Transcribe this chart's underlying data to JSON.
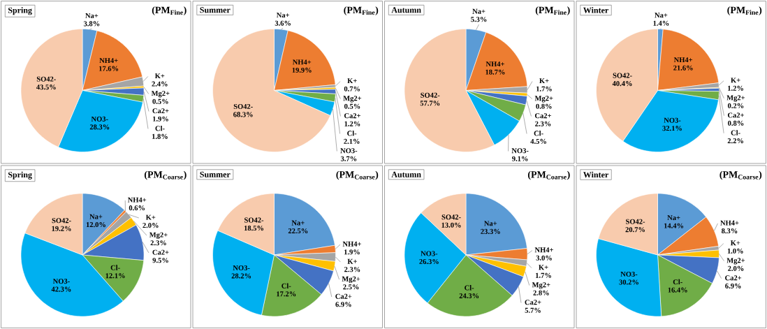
{
  "chart_data": [
    {
      "type": "pie",
      "title": "Spring",
      "subtitle": "(PM$_{Fine}$)",
      "categories": [
        "Na+",
        "NH4+",
        "K+",
        "Mg2+",
        "Ca2+",
        "Cl-",
        "NO3-",
        "SO42-"
      ],
      "values": [
        3.8,
        17.6,
        2.4,
        0.5,
        1.9,
        1.8,
        28.3,
        43.5
      ],
      "value_labels": [
        "3.8%",
        "17.6%",
        "2.4%",
        "0.5%",
        "1.9%",
        "1.8%",
        "28.3%",
        "43.5%"
      ],
      "colors": [
        "#5b9bd5",
        "#ed7d31",
        "#a5a5a5",
        "#ffc000",
        "#4472c4",
        "#70ad47",
        "#00b0f0",
        "#f8cbad"
      ]
    },
    {
      "type": "pie",
      "title": "Summer",
      "subtitle": "(PM$_{Fine}$)",
      "categories": [
        "Na+",
        "NH4+",
        "K+",
        "Mg2+",
        "Ca2+",
        "Cl-",
        "NO3-",
        "SO42-"
      ],
      "values": [
        3.6,
        19.9,
        0.7,
        0.5,
        1.2,
        2.1,
        3.7,
        68.3
      ],
      "value_labels": [
        "3.6%",
        "19.9%",
        "0.7%",
        "0.5%",
        "1.2%",
        "2.1%",
        "3.7%",
        "68.3%"
      ],
      "colors": [
        "#5b9bd5",
        "#ed7d31",
        "#a5a5a5",
        "#ffc000",
        "#4472c4",
        "#70ad47",
        "#00b0f0",
        "#f8cbad"
      ]
    },
    {
      "type": "pie",
      "title": "Autumn",
      "subtitle": "(PM$_{Fine}$)",
      "categories": [
        "Na+",
        "NH4+",
        "K+",
        "Mg2+",
        "Ca2+",
        "Cl-",
        "NO3-",
        "SO42-"
      ],
      "values": [
        5.3,
        18.7,
        1.7,
        0.8,
        2.3,
        4.5,
        9.1,
        57.7
      ],
      "value_labels": [
        "5.3%",
        "18.7%",
        "1.7%",
        "0.8%",
        "2.3%",
        "4.5%",
        "9.1%",
        "57.7%"
      ],
      "colors": [
        "#5b9bd5",
        "#ed7d31",
        "#a5a5a5",
        "#ffc000",
        "#4472c4",
        "#70ad47",
        "#00b0f0",
        "#f8cbad"
      ]
    },
    {
      "type": "pie",
      "title": "Winter",
      "subtitle": "(PM$_{Fine}$)",
      "categories": [
        "Na+",
        "NH4+",
        "K+",
        "Mg2+",
        "Ca2+",
        "Cl-",
        "NO3-",
        "SO42-"
      ],
      "values": [
        1.4,
        21.6,
        1.2,
        0.2,
        0.8,
        2.2,
        32.1,
        40.4
      ],
      "value_labels": [
        "1.4%",
        "21.6%",
        "1.2%",
        "0.2%",
        "0.8%",
        "2.2%",
        "32.1%",
        "40.4%"
      ],
      "colors": [
        "#5b9bd5",
        "#ed7d31",
        "#a5a5a5",
        "#ffc000",
        "#4472c4",
        "#70ad47",
        "#00b0f0",
        "#f8cbad"
      ]
    },
    {
      "type": "pie",
      "title": "Spring",
      "subtitle": "(PM$_{Coarse}$)",
      "categories": [
        "Na+",
        "NH4+",
        "K+",
        "Mg2+",
        "Ca2+",
        "Cl-",
        "NO3-",
        "SO42-"
      ],
      "values": [
        12.0,
        0.6,
        2.0,
        2.3,
        9.5,
        12.1,
        42.3,
        19.2
      ],
      "value_labels": [
        "12.0%",
        "0.6%",
        "2.0%",
        "2.3%",
        "9.5%",
        "12.1%",
        "42.3%",
        "19.2%"
      ],
      "colors": [
        "#5b9bd5",
        "#ed7d31",
        "#a5a5a5",
        "#ffc000",
        "#4472c4",
        "#70ad47",
        "#00b0f0",
        "#f8cbad"
      ]
    },
    {
      "type": "pie",
      "title": "Summer",
      "subtitle": "(PM$_{Coarse}$)",
      "categories": [
        "Na+",
        "NH4+",
        "K+",
        "Mg2+",
        "Ca2+",
        "Cl-",
        "NO3-",
        "SO42-"
      ],
      "values": [
        22.5,
        1.9,
        2.3,
        2.5,
        6.9,
        17.2,
        28.2,
        18.5
      ],
      "value_labels": [
        "22.5%",
        "1.9%",
        "2.3%",
        "2.5%",
        "6.9%",
        "17.2%",
        "28.2%",
        "18.5%"
      ],
      "colors": [
        "#5b9bd5",
        "#ed7d31",
        "#a5a5a5",
        "#ffc000",
        "#4472c4",
        "#70ad47",
        "#00b0f0",
        "#f8cbad"
      ]
    },
    {
      "type": "pie",
      "title": "Autumn",
      "subtitle": "(PM$_{Coarse}$)",
      "categories": [
        "Na+",
        "NH4+",
        "K+",
        "Mg2+",
        "Ca2+",
        "Cl-",
        "NO3-",
        "SO42-"
      ],
      "values": [
        23.3,
        3.0,
        1.7,
        2.8,
        5.7,
        24.3,
        26.3,
        13.0
      ],
      "value_labels": [
        "23.3%",
        "3.0%",
        "1.7%",
        "2.8%",
        "5.7%",
        "24.3%",
        "26.3%",
        "13.0%"
      ],
      "colors": [
        "#5b9bd5",
        "#ed7d31",
        "#a5a5a5",
        "#ffc000",
        "#4472c4",
        "#70ad47",
        "#00b0f0",
        "#f8cbad"
      ]
    },
    {
      "type": "pie",
      "title": "Winter",
      "subtitle": "(PM$_{Coarse}$)",
      "categories": [
        "Na+",
        "NH4+",
        "K+",
        "Mg2+",
        "Ca2+",
        "Cl-",
        "NO3-",
        "SO42-"
      ],
      "values": [
        14.4,
        8.3,
        1.0,
        2.0,
        6.9,
        16.4,
        30.2,
        20.7
      ],
      "value_labels": [
        "14.4%",
        "8.3%",
        "1.0%",
        "2.0%",
        "6.9%",
        "16.4%",
        "30.2%",
        "20.7%"
      ],
      "colors": [
        "#5b9bd5",
        "#ed7d31",
        "#a5a5a5",
        "#ffc000",
        "#4472c4",
        "#70ad47",
        "#00b0f0",
        "#f8cbad"
      ]
    }
  ]
}
